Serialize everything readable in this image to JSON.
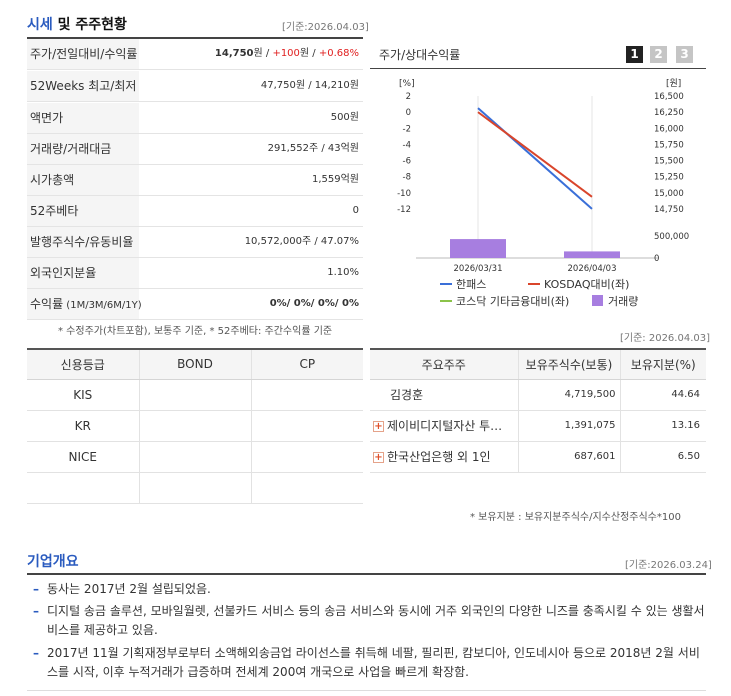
{
  "quote": {
    "title_main": "시세",
    "title_rest": " 및 주주현황",
    "basis": "[기준:2026.04.03]",
    "rows": [
      {
        "label": "주가/전일대비/수익률",
        "price": "14,750",
        "price_unit": "원",
        "sep1": " / ",
        "change": "+100",
        "change_unit": "원",
        "sep2": " / ",
        "pct": "+0.68%"
      },
      {
        "label": "52Weeks 최고/최저",
        "value": "47,750원 / 14,210원"
      },
      {
        "label": "액면가",
        "value": "500원"
      },
      {
        "label": "거래량/거래대금",
        "value": "291,552주 / 43억원"
      },
      {
        "label": "시가총액",
        "value": "1,559억원"
      },
      {
        "label": "52주베타",
        "value": "0"
      },
      {
        "label": "발행주식수/유동비율",
        "value": "10,572,000주 / 47.07%"
      },
      {
        "label": "외국인지분율",
        "value": "1.10%"
      },
      {
        "label_main": "수익률",
        "label_sub": " (1M/3M/6M/1Y)",
        "value": "0%/ 0%/ 0%/ 0%"
      }
    ],
    "note": "* 수정주가(차트포함), 보통주 기준, * 52주베타: 주간수익률 기준"
  },
  "chart": {
    "title": "주가/상대수익률",
    "pages": [
      "1",
      "2",
      "3"
    ],
    "left_unit": "[%]",
    "right_unit": "[원]",
    "colors": {
      "price": "#3a6fd8",
      "kosdaq": "#d9452b",
      "sector": "#8bc34a",
      "volume": "#a77ee0"
    }
  },
  "chart_data": {
    "type": "line",
    "x": [
      "2026/03/31",
      "2026/04/03"
    ],
    "series": [
      {
        "name": "한패스",
        "axis": "left",
        "values": [
          0.5,
          -12
        ]
      },
      {
        "name": "KOSDAQ대비(좌)",
        "axis": "left",
        "values": [
          0,
          -10.5
        ]
      },
      {
        "name": "코스닥 기타금융대비(좌)",
        "axis": "left",
        "values": [
          null,
          null
        ]
      },
      {
        "name": "거래량",
        "axis": "volume",
        "type": "bar",
        "values": [
          430000,
          150000
        ]
      }
    ],
    "left_ticks": [
      "2",
      "0",
      "-2",
      "-4",
      "-6",
      "-8",
      "-10",
      "-12"
    ],
    "right_ticks": [
      "16,500",
      "16,250",
      "16,000",
      "15,750",
      "15,500",
      "15,250",
      "15,000",
      "14,750"
    ],
    "volume_ticks": [
      "500,000",
      "0"
    ],
    "ylim_left": [
      -13,
      2
    ],
    "ylim_volume": [
      0,
      500000
    ],
    "legend": [
      {
        "label": "한패스",
        "color": "#3a6fd8",
        "kind": "line"
      },
      {
        "label": "KOSDAQ대비(좌)",
        "color": "#d9452b",
        "kind": "line"
      },
      {
        "label": "코스닥 기타금융대비(좌)",
        "color": "#8bc34a",
        "kind": "line"
      },
      {
        "label": "거래량",
        "color": "#a77ee0",
        "kind": "box"
      }
    ]
  },
  "credit": {
    "headers": [
      "신용등급",
      "BOND",
      "CP"
    ],
    "rows": [
      [
        "KIS",
        "",
        ""
      ],
      [
        "KR",
        "",
        ""
      ],
      [
        "NICE",
        "",
        ""
      ],
      [
        "",
        "",
        ""
      ]
    ]
  },
  "holders": {
    "basis": "[기준: 2026.04.03]",
    "headers": [
      "주요주주",
      "보유주식수(보통)",
      "보유지분(%)"
    ],
    "rows": [
      {
        "name": "김경훈",
        "shares": "4,719,500",
        "pct": "44.64",
        "plus": false
      },
      {
        "name": "제이비디지털자산 투…",
        "shares": "1,391,075",
        "pct": "13.16",
        "plus": true
      },
      {
        "name": "한국산업은행 외 1인",
        "shares": "687,601",
        "pct": "6.50",
        "plus": true
      }
    ],
    "note": "* 보유지분 : 보유지분주식수/지수산정주식수*100"
  },
  "overview": {
    "title": "기업개요",
    "basis": "[기준:2026.03.24]",
    "items": [
      "동사는 2017년 2월 설립되었음.",
      "디지털 송금 솔루션, 모바일월렛, 선불카드 서비스 등의 송금 서비스와 동시에 거주 외국인의 다양한 니즈를 충족시킬 수 있는 생활서비스를 제공하고 있음.",
      "2017년 11월 기획재정부로부터 소액해외송금업 라이선스를 취득해 네팔, 필리핀, 캄보디아, 인도네시아 등으로 2018년 2월 서비스를 시작, 이후 누적거래가 급증하며 전세계 200여 개국으로 사업을 빠르게 확장함."
    ]
  }
}
